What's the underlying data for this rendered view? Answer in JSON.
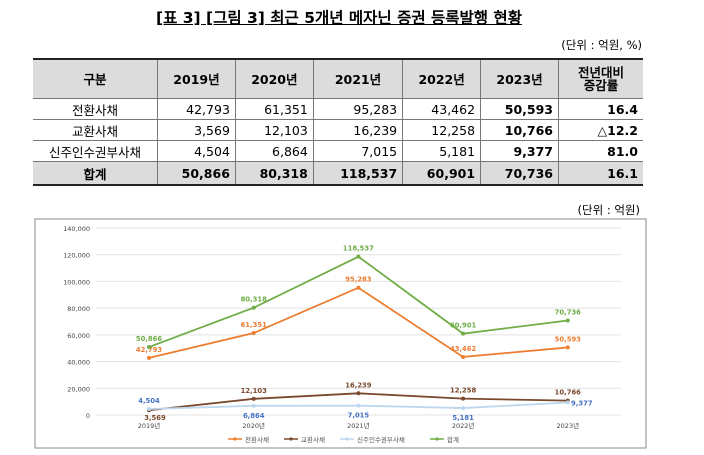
{
  "title": "[표 3] [그림 3] 최근 5개년 메자닌 증권 등록발행 현황",
  "table": {
    "unit": "(단위 : 억원, %)",
    "headers": [
      "구분",
      "2019년",
      "2020년",
      "2021년",
      "2022년",
      "2023년",
      "전년대비",
      "증감률"
    ],
    "rows": [
      {
        "label": "전환사채",
        "values": [
          "42,793",
          "61,351",
          "95,283",
          "43,462",
          "50,593",
          "16.4"
        ]
      },
      {
        "label": "교환사채",
        "values": [
          "3,569",
          "12,103",
          "16,239",
          "12,258",
          "10,766",
          "△12.2"
        ]
      },
      {
        "label": "신주인수권부사채",
        "values": [
          "4,504",
          "6,864",
          "7,015",
          "5,181",
          "9,377",
          "81.0"
        ]
      },
      {
        "label": "합계",
        "values": [
          "50,866",
          "80,318",
          "118,537",
          "60,901",
          "70,736",
          "16.1"
        ]
      }
    ]
  },
  "chart_unit": "(단위 : 억원)",
  "chart_data": {
    "type": "line",
    "categories": [
      "2019년",
      "2020년",
      "2021년",
      "2022년",
      "2023년"
    ],
    "ylim": [
      0,
      140000
    ],
    "yticks": [
      "0",
      "20,000",
      "40,000",
      "60,000",
      "80,000",
      "100,000",
      "120,000",
      "140,000"
    ],
    "grid": true,
    "legend": "bottom",
    "series": [
      {
        "name": "전환사채",
        "color": "#ED7D31",
        "values": [
          42793,
          61351,
          95283,
          43462,
          50593
        ],
        "labels": [
          "42,793",
          "61,351",
          "95,283",
          "43,462",
          "50,593"
        ]
      },
      {
        "name": "교환사채",
        "color": "#7B4A2E",
        "values": [
          3569,
          12103,
          16239,
          12258,
          10766
        ],
        "labels": [
          "3,569",
          "12,103",
          "16,239",
          "12,258",
          "10,766"
        ]
      },
      {
        "name": "신주인수권부사채",
        "color": "#BDD7EE",
        "label_color": "#4472C4",
        "values": [
          4504,
          6864,
          7015,
          5181,
          9377
        ],
        "labels": [
          "4,504",
          "6,864",
          "7,015",
          "5,181",
          "9,377"
        ]
      },
      {
        "name": "합계",
        "color": "#70AD47",
        "values": [
          50866,
          80318,
          118537,
          60901,
          70736
        ],
        "labels": [
          "50,866",
          "80,318",
          "118,537",
          "60,901",
          "70,736"
        ]
      }
    ]
  }
}
